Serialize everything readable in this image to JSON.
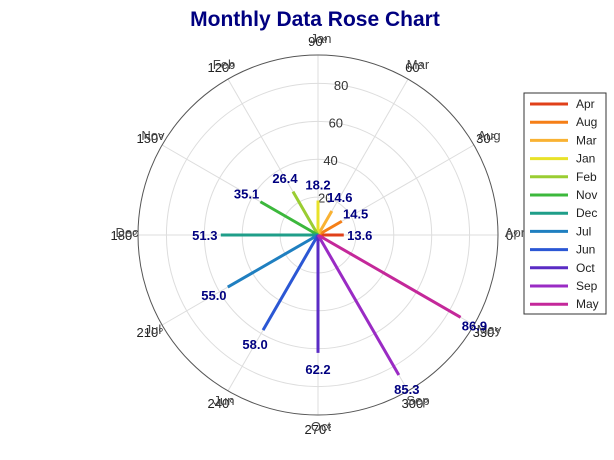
{
  "chart_data": {
    "type": "polar-line",
    "title": "Monthly Data Rose Chart",
    "radial_ticks": [
      "20",
      "40",
      "60",
      "80"
    ],
    "rlim": [
      0,
      95
    ],
    "angle_ticks": [
      {
        "angle": 0,
        "label": "0°"
      },
      {
        "angle": 30,
        "label": "30°"
      },
      {
        "angle": 60,
        "label": "60°"
      },
      {
        "angle": 90,
        "label": "90°"
      },
      {
        "angle": 120,
        "label": "120°"
      },
      {
        "angle": 150,
        "label": "150°"
      },
      {
        "angle": 180,
        "label": "180°"
      },
      {
        "angle": 210,
        "label": "210°"
      },
      {
        "angle": 240,
        "label": "240°"
      },
      {
        "angle": 270,
        "label": "270°"
      },
      {
        "angle": 300,
        "label": "300°"
      },
      {
        "angle": 330,
        "label": "330°"
      }
    ],
    "category_ticks": [
      {
        "angle": 0,
        "label": "Apr"
      },
      {
        "angle": 30,
        "label": "Aug"
      },
      {
        "angle": 60,
        "label": "Mar"
      },
      {
        "angle": 90,
        "label": "Jan"
      },
      {
        "angle": 120,
        "label": "Feb"
      },
      {
        "angle": 150,
        "label": "Nov"
      },
      {
        "angle": 180,
        "label": "Dec"
      },
      {
        "angle": 210,
        "label": "Jul"
      },
      {
        "angle": 240,
        "label": "Jun"
      },
      {
        "angle": 270,
        "label": "Oct"
      },
      {
        "angle": 300,
        "label": "Sep"
      },
      {
        "angle": 330,
        "label": "May"
      }
    ],
    "series": [
      {
        "name": "Apr",
        "angle": 0,
        "value": 13.6,
        "label": "13.6",
        "color": "#e0401a"
      },
      {
        "name": "Aug",
        "angle": 30,
        "value": 14.5,
        "label": "14.5",
        "color": "#f57f17"
      },
      {
        "name": "Mar",
        "angle": 60,
        "value": 14.6,
        "label": "14.6",
        "color": "#f9b233"
      },
      {
        "name": "Jan",
        "angle": 90,
        "value": 18.2,
        "label": "18.2",
        "color": "#e8e22a"
      },
      {
        "name": "Feb",
        "angle": 120,
        "value": 26.4,
        "label": "26.4",
        "color": "#9acd32"
      },
      {
        "name": "Nov",
        "angle": 150,
        "value": 35.1,
        "label": "35.1",
        "color": "#3cb83c"
      },
      {
        "name": "Dec",
        "angle": 180,
        "value": 51.3,
        "label": "51.3",
        "color": "#1f9e89"
      },
      {
        "name": "Jul",
        "angle": 210,
        "value": 55.0,
        "label": "55.0",
        "color": "#1f7fc0"
      },
      {
        "name": "Jun",
        "angle": 240,
        "value": 58.0,
        "label": "58.0",
        "color": "#2b57d4"
      },
      {
        "name": "Oct",
        "angle": 270,
        "value": 62.2,
        "label": "62.2",
        "color": "#5a2bc4"
      },
      {
        "name": "Sep",
        "angle": 300,
        "value": 85.3,
        "label": "85.3",
        "color": "#9a2bc4"
      },
      {
        "name": "May",
        "angle": 330,
        "value": 86.9,
        "label": "86.9",
        "color": "#c4289a"
      }
    ],
    "grid": true,
    "legend_position": "right"
  }
}
